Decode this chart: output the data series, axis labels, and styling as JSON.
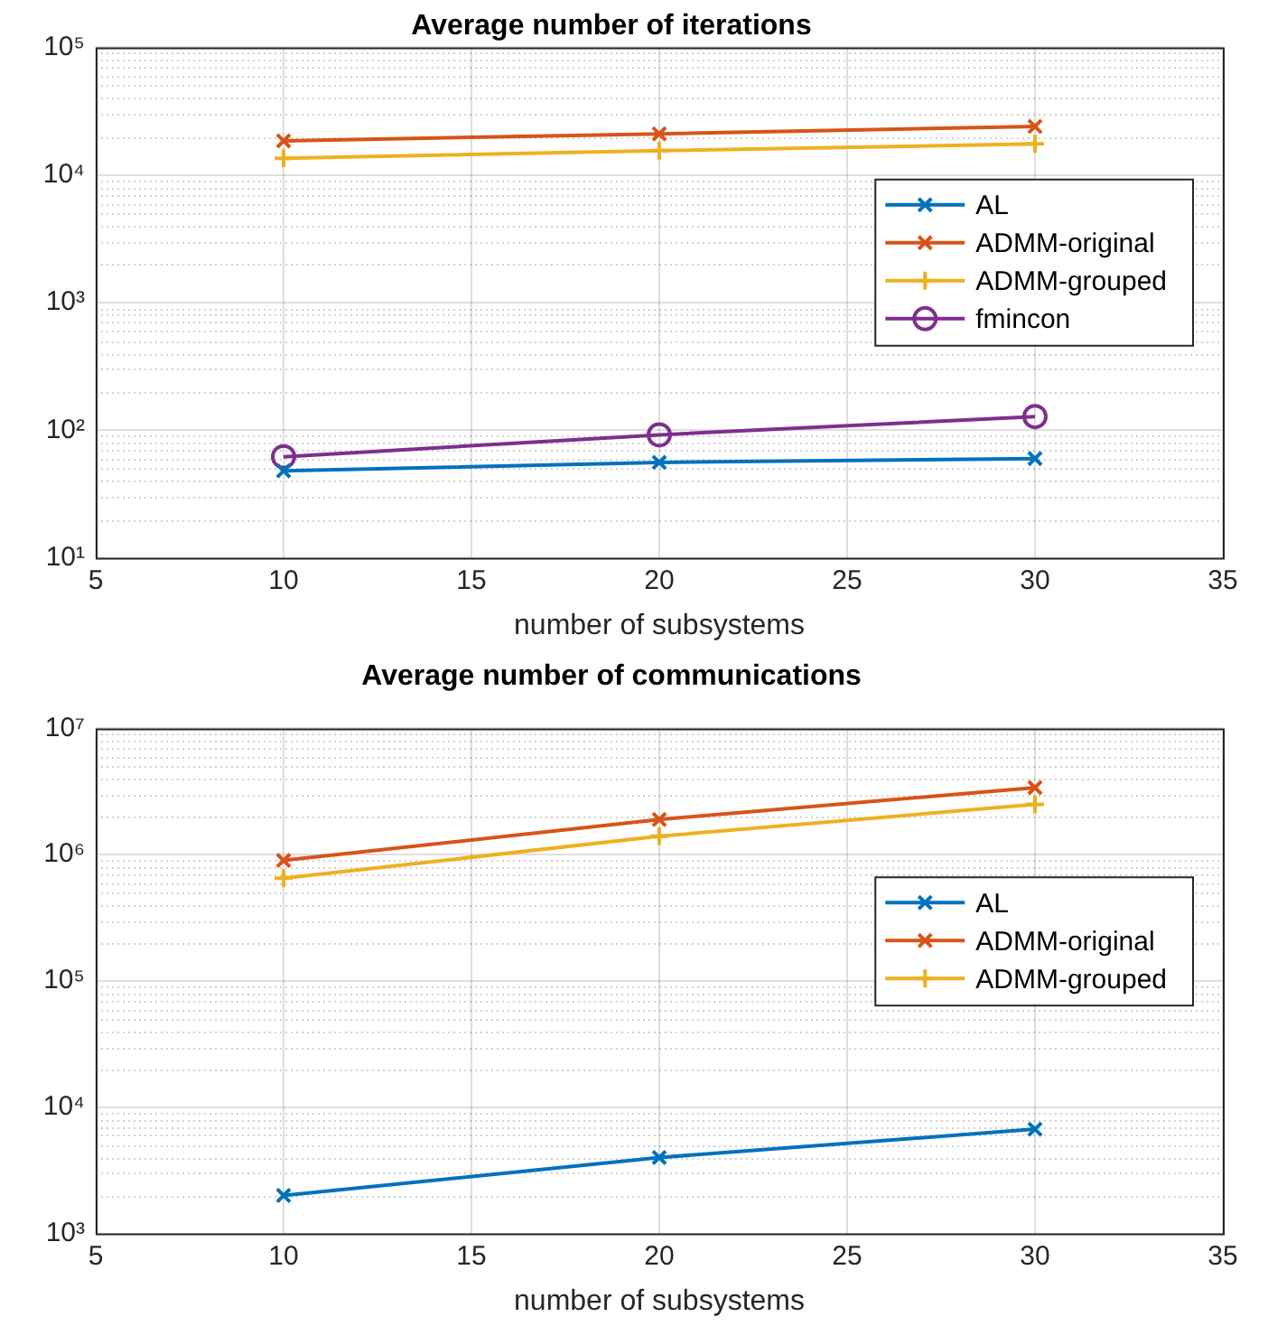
{
  "chart_data": [
    {
      "type": "line",
      "title": "Average number of iterations",
      "xlabel": "number of subsystems",
      "x": [
        10,
        20,
        30
      ],
      "series": [
        {
          "name": "AL",
          "color": "#0072bd",
          "marker": "cross",
          "values": [
            48,
            56,
            60
          ]
        },
        {
          "name": "ADMM-original",
          "color": "#d95319",
          "marker": "cross",
          "values": [
            18500,
            21000,
            24000
          ]
        },
        {
          "name": "ADMM-grouped",
          "color": "#edb120",
          "marker": "plus",
          "values": [
            13500,
            15500,
            17500
          ]
        },
        {
          "name": "fmincon",
          "color": "#7e2f8e",
          "marker": "circle",
          "values": [
            62,
            92,
            128
          ]
        }
      ],
      "xlim": [
        5,
        35
      ],
      "xticks": [
        5,
        10,
        15,
        20,
        25,
        30,
        35
      ],
      "ylim": [
        10,
        100000
      ],
      "yticks": [
        {
          "value": 10,
          "label": "10¹"
        },
        {
          "value": 100,
          "label": "10²"
        },
        {
          "value": 1000,
          "label": "10³"
        },
        {
          "value": 10000,
          "label": "10⁴"
        },
        {
          "value": 100000,
          "label": "10⁵"
        }
      ],
      "log": "y",
      "grid": true,
      "legend": "right"
    },
    {
      "type": "line",
      "title": "Average number of communications",
      "xlabel": "number of subsystems",
      "x": [
        10,
        20,
        30
      ],
      "series": [
        {
          "name": "AL",
          "color": "#0072bd",
          "marker": "cross",
          "values": [
            2000,
            4000,
            6700
          ]
        },
        {
          "name": "ADMM-original",
          "color": "#d95319",
          "marker": "cross",
          "values": [
            900000,
            1900000,
            3400000
          ]
        },
        {
          "name": "ADMM-grouped",
          "color": "#edb120",
          "marker": "plus",
          "values": [
            650000,
            1400000,
            2500000
          ]
        }
      ],
      "xlim": [
        5,
        35
      ],
      "xticks": [
        5,
        10,
        15,
        20,
        25,
        30,
        35
      ],
      "ylim": [
        1000,
        10000000
      ],
      "yticks": [
        {
          "value": 1000,
          "label": "10³"
        },
        {
          "value": 10000,
          "label": "10⁴"
        },
        {
          "value": 100000,
          "label": "10⁵"
        },
        {
          "value": 1000000,
          "label": "10⁶"
        },
        {
          "value": 10000000,
          "label": "10⁷"
        }
      ],
      "log": "y",
      "grid": true,
      "legend": "right"
    }
  ]
}
